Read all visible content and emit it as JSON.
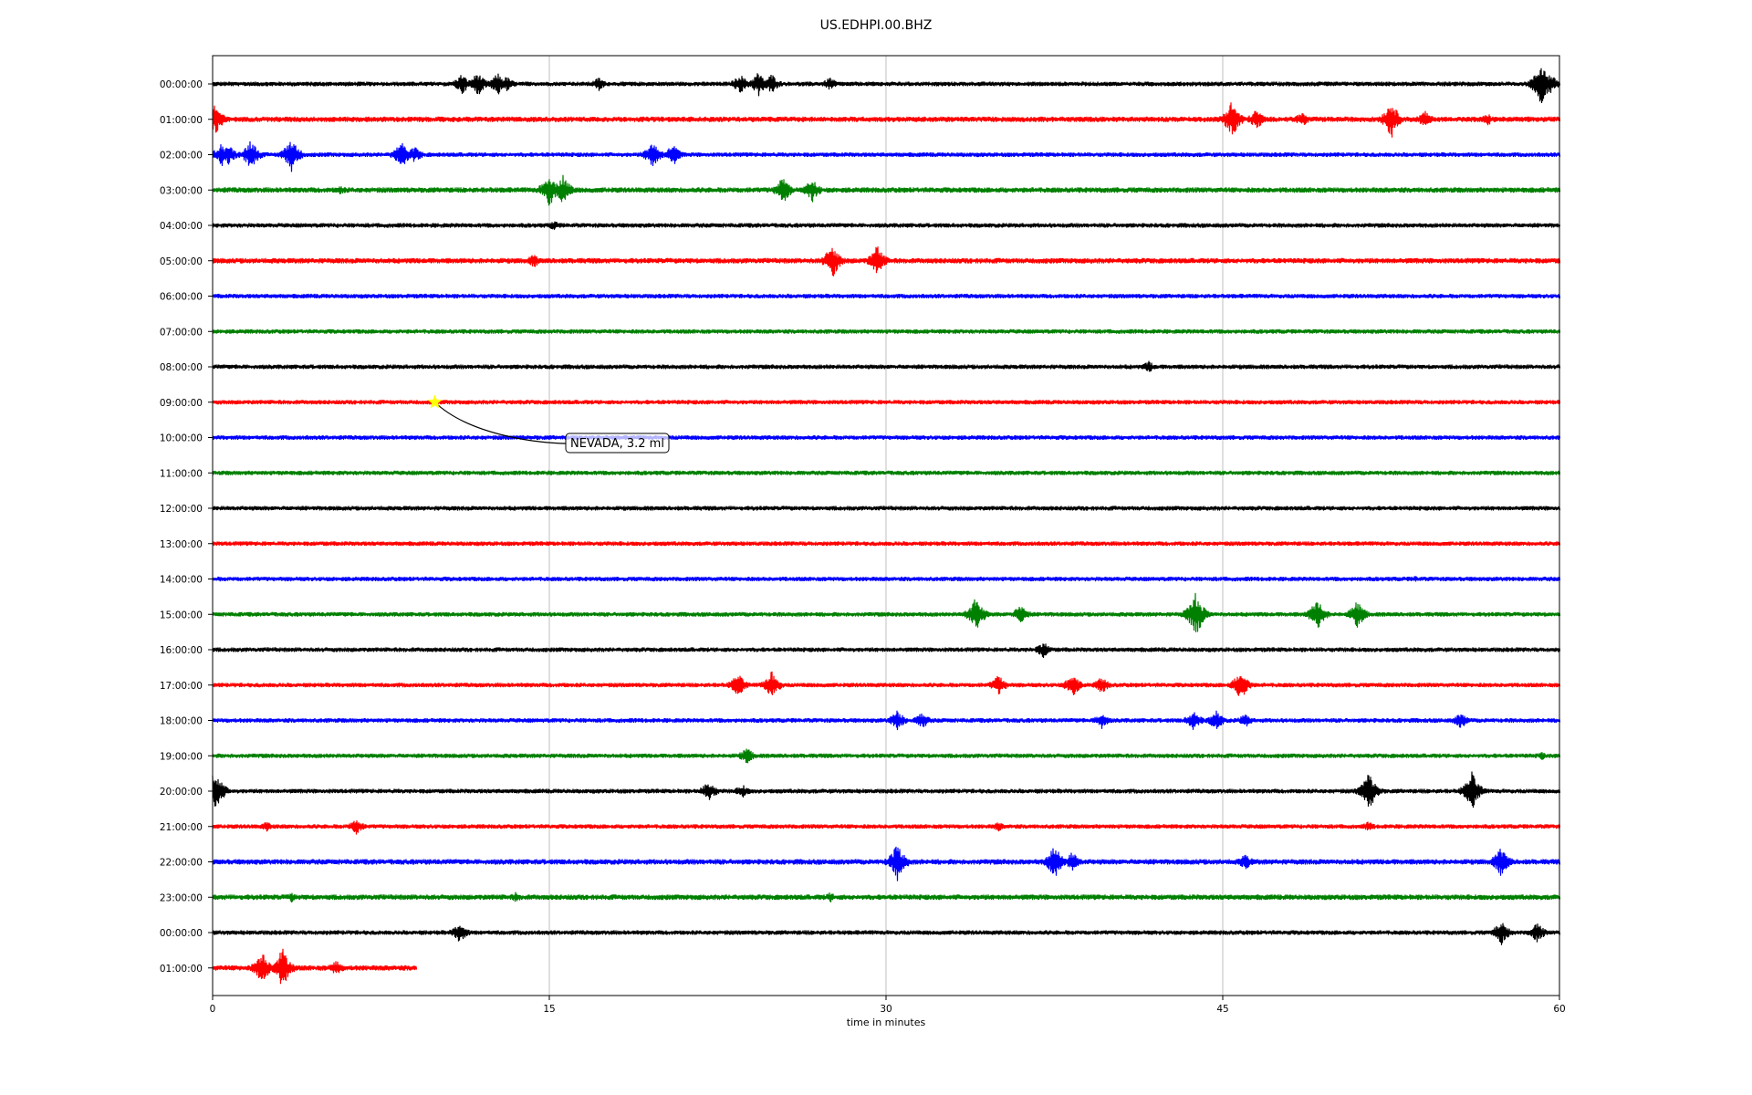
{
  "chart_data": {
    "type": "line",
    "title": "US.EDHPI.00.BHZ",
    "xlabel": "time in minutes",
    "ylabel": "",
    "xlim": [
      0,
      60
    ],
    "x_ticks": [
      "0",
      "15",
      "30",
      "45",
      "60"
    ],
    "x_tick_values": [
      0,
      15,
      30,
      45,
      60
    ],
    "grid": "vertical",
    "colors": [
      "#000000",
      "#ff0000",
      "#0000ff",
      "#008000"
    ],
    "rows": [
      {
        "label": "00:00:00",
        "color": "#000000",
        "noise": 2.5,
        "end_min": 60,
        "events": [
          [
            11.1,
            12
          ],
          [
            11.8,
            14
          ],
          [
            12.7,
            13
          ],
          [
            13.1,
            9
          ],
          [
            17.2,
            8
          ],
          [
            23.5,
            12
          ],
          [
            24.3,
            14
          ],
          [
            24.9,
            12
          ],
          [
            27.5,
            8
          ],
          [
            59.2,
            26
          ],
          [
            59.6,
            12
          ]
        ]
      },
      {
        "label": "01:00:00",
        "color": "#ff0000",
        "noise": 3,
        "end_min": 60,
        "events": [
          [
            0.1,
            18
          ],
          [
            45.4,
            22
          ],
          [
            46.5,
            12
          ],
          [
            48.5,
            9
          ],
          [
            52.5,
            22
          ],
          [
            54,
            10
          ],
          [
            56.8,
            7
          ]
        ]
      },
      {
        "label": "02:00:00",
        "color": "#0000ff",
        "noise": 2.5,
        "end_min": 60,
        "events": [
          [
            0.4,
            14
          ],
          [
            0.7,
            12
          ],
          [
            1.7,
            18
          ],
          [
            3.5,
            20
          ],
          [
            8.4,
            16
          ],
          [
            9,
            10
          ],
          [
            19.6,
            16
          ],
          [
            20.5,
            13
          ]
        ]
      },
      {
        "label": "03:00:00",
        "color": "#008000",
        "noise": 3,
        "end_min": 60,
        "events": [
          [
            5.7,
            6
          ],
          [
            15,
            20
          ],
          [
            15.6,
            18
          ],
          [
            25.4,
            16
          ],
          [
            26.7,
            14
          ]
        ]
      },
      {
        "label": "04:00:00",
        "color": "#000000",
        "noise": 2.5,
        "end_min": 60,
        "events": [
          [
            15.2,
            6
          ]
        ]
      },
      {
        "label": "05:00:00",
        "color": "#ff0000",
        "noise": 3,
        "end_min": 60,
        "events": [
          [
            14.3,
            8
          ],
          [
            27.6,
            20
          ],
          [
            29.6,
            18
          ]
        ]
      },
      {
        "label": "06:00:00",
        "color": "#0000ff",
        "noise": 2.5,
        "end_min": 60,
        "events": []
      },
      {
        "label": "07:00:00",
        "color": "#008000",
        "noise": 2.5,
        "end_min": 60,
        "events": []
      },
      {
        "label": "08:00:00",
        "color": "#000000",
        "noise": 2.5,
        "end_min": 60,
        "events": [
          [
            41.7,
            7
          ]
        ]
      },
      {
        "label": "09:00:00",
        "color": "#ff0000",
        "noise": 2.5,
        "end_min": 60,
        "events": []
      },
      {
        "label": "10:00:00",
        "color": "#0000ff",
        "noise": 2.5,
        "end_min": 60,
        "events": []
      },
      {
        "label": "11:00:00",
        "color": "#008000",
        "noise": 2.5,
        "end_min": 60,
        "events": []
      },
      {
        "label": "12:00:00",
        "color": "#000000",
        "noise": 2.5,
        "end_min": 60,
        "events": []
      },
      {
        "label": "13:00:00",
        "color": "#ff0000",
        "noise": 2.5,
        "end_min": 60,
        "events": []
      },
      {
        "label": "14:00:00",
        "color": "#0000ff",
        "noise": 2.5,
        "end_min": 60,
        "events": [
          [
            53.6,
            4
          ]
        ]
      },
      {
        "label": "15:00:00",
        "color": "#008000",
        "noise": 2.5,
        "end_min": 60,
        "events": [
          [
            34,
            20
          ],
          [
            36,
            12
          ],
          [
            43.8,
            26
          ],
          [
            49.2,
            18
          ],
          [
            51,
            16
          ]
        ]
      },
      {
        "label": "16:00:00",
        "color": "#000000",
        "noise": 2.5,
        "end_min": 60,
        "events": [
          [
            37,
            10
          ]
        ]
      },
      {
        "label": "17:00:00",
        "color": "#ff0000",
        "noise": 2.5,
        "end_min": 60,
        "events": [
          [
            23.4,
            14
          ],
          [
            24.9,
            16
          ],
          [
            35,
            12
          ],
          [
            38.3,
            14
          ],
          [
            39.6,
            10
          ],
          [
            45.8,
            18
          ]
        ]
      },
      {
        "label": "18:00:00",
        "color": "#0000ff",
        "noise": 2.5,
        "end_min": 60,
        "events": [
          [
            30.5,
            12
          ],
          [
            31.6,
            10
          ],
          [
            39.6,
            10
          ],
          [
            43.7,
            12
          ],
          [
            44.7,
            12
          ],
          [
            46,
            8
          ],
          [
            55.6,
            10
          ]
        ]
      },
      {
        "label": "19:00:00",
        "color": "#008000",
        "noise": 2.5,
        "end_min": 60,
        "events": [
          [
            23.8,
            10
          ],
          [
            59.2,
            5
          ]
        ]
      },
      {
        "label": "20:00:00",
        "color": "#000000",
        "noise": 2.5,
        "end_min": 60,
        "events": [
          [
            0.1,
            26
          ],
          [
            22.1,
            12
          ],
          [
            23.6,
            8
          ],
          [
            51.5,
            22
          ],
          [
            56.1,
            22
          ]
        ]
      },
      {
        "label": "21:00:00",
        "color": "#ff0000",
        "noise": 2.5,
        "end_min": 60,
        "events": [
          [
            2.4,
            6
          ],
          [
            6.4,
            10
          ],
          [
            35,
            6
          ],
          [
            51.5,
            6
          ]
        ]
      },
      {
        "label": "22:00:00",
        "color": "#0000ff",
        "noise": 3,
        "end_min": 60,
        "events": [
          [
            30.5,
            22
          ],
          [
            37.5,
            20
          ],
          [
            38.3,
            12
          ],
          [
            46,
            10
          ],
          [
            57.4,
            18
          ]
        ]
      },
      {
        "label": "23:00:00",
        "color": "#008000",
        "noise": 3,
        "end_min": 60,
        "events": [
          [
            3.5,
            6
          ],
          [
            13.5,
            6
          ],
          [
            27.5,
            6
          ]
        ]
      },
      {
        "label": "00:00:00",
        "color": "#000000",
        "noise": 2.5,
        "end_min": 60,
        "events": [
          [
            11,
            12
          ],
          [
            57.4,
            14
          ],
          [
            59,
            12
          ]
        ]
      },
      {
        "label": "01:00:00",
        "color": "#ff0000",
        "noise": 3,
        "end_min": 9.1,
        "events": [
          [
            2.2,
            20
          ],
          [
            3.1,
            24
          ],
          [
            5.5,
            9
          ]
        ]
      }
    ],
    "annotation": {
      "text": "NEVADA, 3.2 ml",
      "row": 9,
      "x": 9.9,
      "marker": "star",
      "marker_color": "#ffff00"
    }
  }
}
